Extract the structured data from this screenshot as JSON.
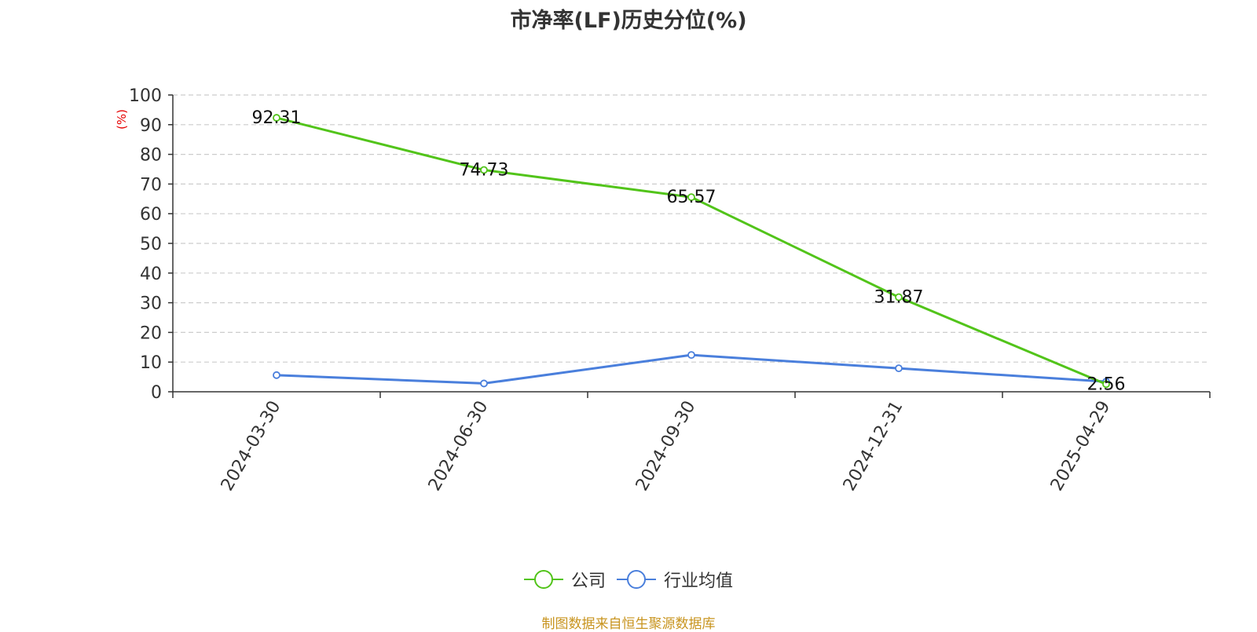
{
  "title": "市净率(LF)历史分位(%)",
  "source": "制图数据来自恒生聚源数据库",
  "chart_data": {
    "type": "line",
    "title": "市净率(LF)历史分位(%)",
    "ylabel": "(%)",
    "ylim": [
      0,
      100
    ],
    "yticks": [
      0,
      10,
      20,
      30,
      40,
      50,
      60,
      70,
      80,
      90,
      100
    ],
    "grid": true,
    "legend_position": "bottom",
    "categories": [
      "2024-03-30",
      "2024-06-30",
      "2024-09-30",
      "2024-12-31",
      "2025-04-29"
    ],
    "series": [
      {
        "name": "公司",
        "color": "#52c41a",
        "show_labels": true,
        "values": [
          92.31,
          74.73,
          65.57,
          31.87,
          2.56
        ]
      },
      {
        "name": "行业均值",
        "color": "#4a7fdc",
        "show_labels": false,
        "values": [
          5.6,
          2.8,
          12.4,
          7.9,
          3.4
        ]
      }
    ]
  }
}
